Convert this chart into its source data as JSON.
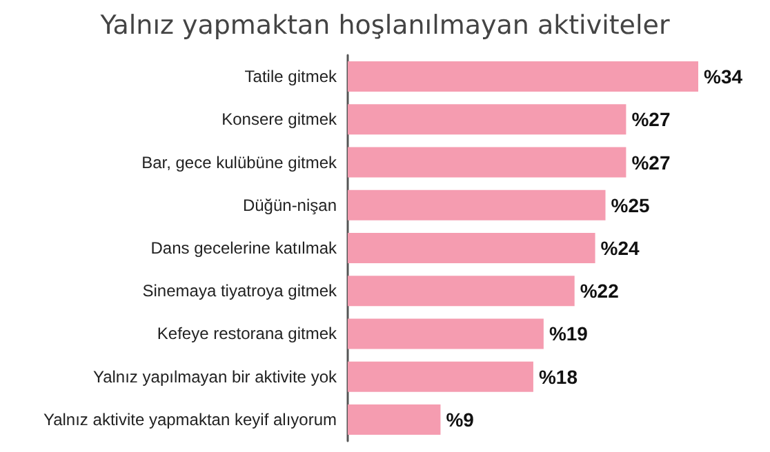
{
  "chart_data": {
    "type": "bar",
    "orientation": "horizontal",
    "title": "Yalnız yapmaktan hoşlanılmayan aktiviteler",
    "categories": [
      "Tatile gitmek",
      "Konsere gitmek",
      "Bar, gece kulübüne gitmek",
      "Düğün-nişan",
      "Dans gecelerine katılmak",
      "Sinemaya tiyatroya gitmek",
      "Kefeye restorana gitmek",
      "Yalnız yapılmayan bir aktivite yok",
      "Yalnız aktivite yapmaktan keyif alıyorum"
    ],
    "values": [
      34,
      27,
      27,
      25,
      24,
      22,
      19,
      18,
      9
    ],
    "value_labels": [
      "%34",
      "%27",
      "%27",
      "%25",
      "%24",
      "%22",
      "%19",
      "%18",
      "%9"
    ],
    "color": "#f59cb0",
    "grid": false
  }
}
